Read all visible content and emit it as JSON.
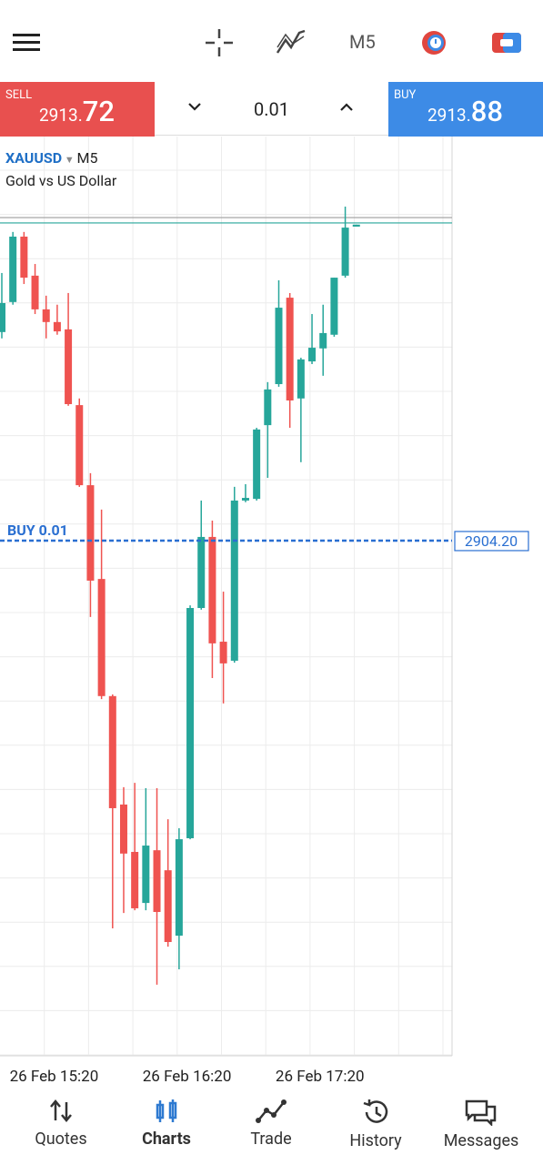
{
  "toolbar": {
    "timeframe": "M5"
  },
  "trade": {
    "sell": {
      "label": "SELL",
      "price_int": "2913.",
      "price_frac": "72"
    },
    "volume": "0.01",
    "buy": {
      "label": "BUY",
      "price_int": "2913.",
      "price_frac": "88"
    }
  },
  "chart_data": {
    "type": "candlestick",
    "symbol": "XAUUSD",
    "timeframe": "M5",
    "description": "Gold vs US Dollar",
    "categories": [
      null,
      null,
      null,
      null,
      null,
      null,
      null,
      null,
      "26 Feb 15:20",
      null,
      null,
      null,
      null,
      null,
      null,
      null,
      null,
      null,
      null,
      null,
      "26 Feb 16:20",
      null,
      null,
      null,
      null,
      null,
      null,
      null,
      null,
      null,
      null,
      null,
      "26 Feb 17:20"
    ],
    "series": [
      {
        "up_color": "#26a69a",
        "down_color": "#ef5350",
        "open": [
          2910.45,
          2911.35,
          2913.31,
          2912.14,
          2911.13,
          2910.75,
          2910.53,
          2908.26,
          2905.86,
          2903.05,
          2899.54,
          2896.29,
          2894.87,
          2893.34,
          2894.92,
          2894.32,
          2892.36,
          2895.28,
          2902.18,
          2904.31,
          2901.17,
          2900.6,
          2905.4,
          2905.45,
          2907.66,
          2908.89,
          2911.48,
          2908.46,
          2909.57,
          2909.96,
          2910.37,
          2912.14,
          2913.61
        ],
        "high": [
          2912.22,
          2913.45,
          2913.45,
          2912.49,
          2911.54,
          2911.27,
          2911.62,
          2908.46,
          2906.22,
          2905.13,
          2899.59,
          2896.81,
          2896.94,
          2896.78,
          2896.78,
          2895.85,
          2895.58,
          2902.26,
          2905.4,
          2904.8,
          2902.67,
          2905.81,
          2905.89,
          2907.58,
          2908.95,
          2912.0,
          2911.62,
          2909.68,
          2910.99,
          2911.27,
          2912.08,
          2914.21,
          2913.67
        ],
        "low": [
          2910.26,
          2911.27,
          2911.89,
          2910.99,
          2910.26,
          2910.37,
          2908.24,
          2905.81,
          2901.91,
          2899.45,
          2892.58,
          2893.04,
          2893.12,
          2893.12,
          2890.89,
          2892.03,
          2891.35,
          2895.25,
          2902.13,
          2900.08,
          2899.32,
          2900.54,
          2905.35,
          2905.4,
          2906.08,
          2908.81,
          2907.58,
          2906.55,
          2909.49,
          2909.14,
          2910.31,
          2912.08,
          2913.61
        ],
        "close": [
          2911.32,
          2913.31,
          2912.08,
          2911.13,
          2910.75,
          2910.47,
          2908.29,
          2905.86,
          2903.0,
          2899.54,
          2896.18,
          2894.82,
          2893.18,
          2895.06,
          2893.07,
          2892.17,
          2895.25,
          2902.18,
          2904.31,
          2901.12,
          2900.52,
          2905.4,
          2905.48,
          2907.53,
          2908.73,
          2911.18,
          2908.4,
          2909.63,
          2909.98,
          2910.42,
          2912.08,
          2913.58,
          2913.67
        ]
      }
    ],
    "ylim": [
      2888.76,
      2916.31
    ],
    "bid": 2913.72,
    "ask": 2913.88,
    "order_line": {
      "label": "BUY 0.01",
      "price": {
        "value": 2904.2,
        "label": "2904.20"
      },
      "color": "#2a6fd1"
    }
  },
  "nav": {
    "items": [
      {
        "label": "Quotes"
      },
      {
        "label": "Charts"
      },
      {
        "label": "Trade"
      },
      {
        "label": "History"
      },
      {
        "label": "Messages"
      }
    ]
  }
}
